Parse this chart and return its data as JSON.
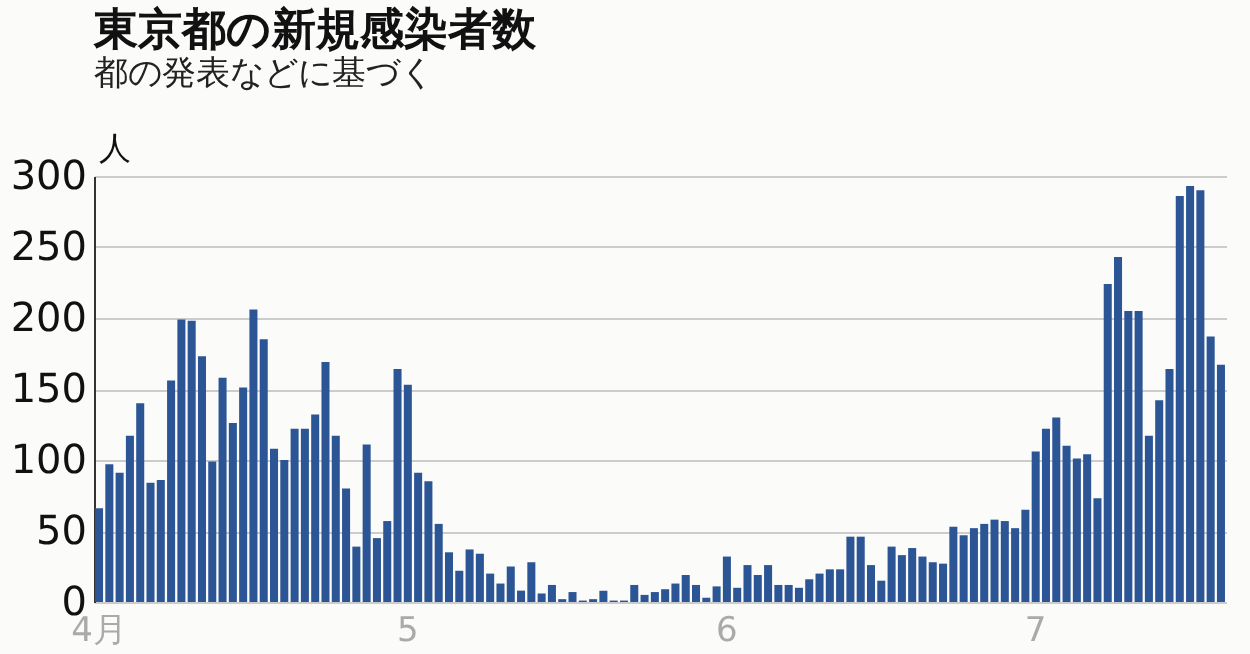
{
  "chart_data": {
    "type": "bar",
    "title": "東京都の新規感染者数",
    "subtitle": "都の発表などに基づく",
    "ylabel": "人",
    "categories": [
      "4月",
      null,
      null,
      null,
      null,
      null,
      null,
      null,
      null,
      null,
      null,
      null,
      null,
      null,
      null,
      null,
      null,
      null,
      null,
      null,
      null,
      null,
      null,
      null,
      null,
      null,
      null,
      null,
      null,
      null,
      "5",
      null,
      null,
      null,
      null,
      null,
      null,
      null,
      null,
      null,
      null,
      null,
      null,
      null,
      null,
      null,
      null,
      null,
      null,
      null,
      null,
      null,
      null,
      null,
      null,
      null,
      null,
      null,
      null,
      null,
      null,
      "6",
      null,
      null,
      null,
      null,
      null,
      null,
      null,
      null,
      null,
      null,
      null,
      null,
      null,
      null,
      null,
      null,
      null,
      null,
      null,
      null,
      null,
      null,
      null,
      null,
      null,
      null,
      null,
      null,
      null,
      "7",
      null,
      null,
      null,
      null,
      null,
      null,
      null,
      null,
      null,
      null,
      null,
      null,
      null,
      null,
      null,
      null,
      null,
      null
    ],
    "values": [
      66,
      97,
      91,
      117,
      140,
      84,
      86,
      156,
      199,
      198,
      173,
      99,
      158,
      126,
      151,
      206,
      185,
      108,
      100,
      122,
      122,
      132,
      169,
      117,
      80,
      39,
      111,
      45,
      57,
      164,
      153,
      91,
      85,
      55,
      35,
      22,
      37,
      34,
      20,
      13,
      25,
      8,
      28,
      6,
      12,
      2,
      7,
      1,
      2,
      8,
      1,
      1,
      12,
      5,
      7,
      9,
      13,
      19,
      12,
      3,
      11,
      32,
      10,
      26,
      19,
      26,
      12,
      12,
      10,
      16,
      20,
      23,
      23,
      46,
      46,
      26,
      15,
      39,
      33,
      38,
      32,
      28,
      27,
      53,
      47,
      52,
      55,
      58,
      57,
      52,
      65,
      106,
      122,
      130,
      110,
      101,
      104,
      73,
      224,
      243,
      205,
      205,
      117,
      142,
      164,
      286,
      293,
      290,
      187,
      167
    ],
    "color": "#2c5596",
    "ylim": [
      0,
      300
    ],
    "yticks": [
      0,
      50,
      100,
      150,
      200,
      250,
      300
    ],
    "grid": "y"
  }
}
